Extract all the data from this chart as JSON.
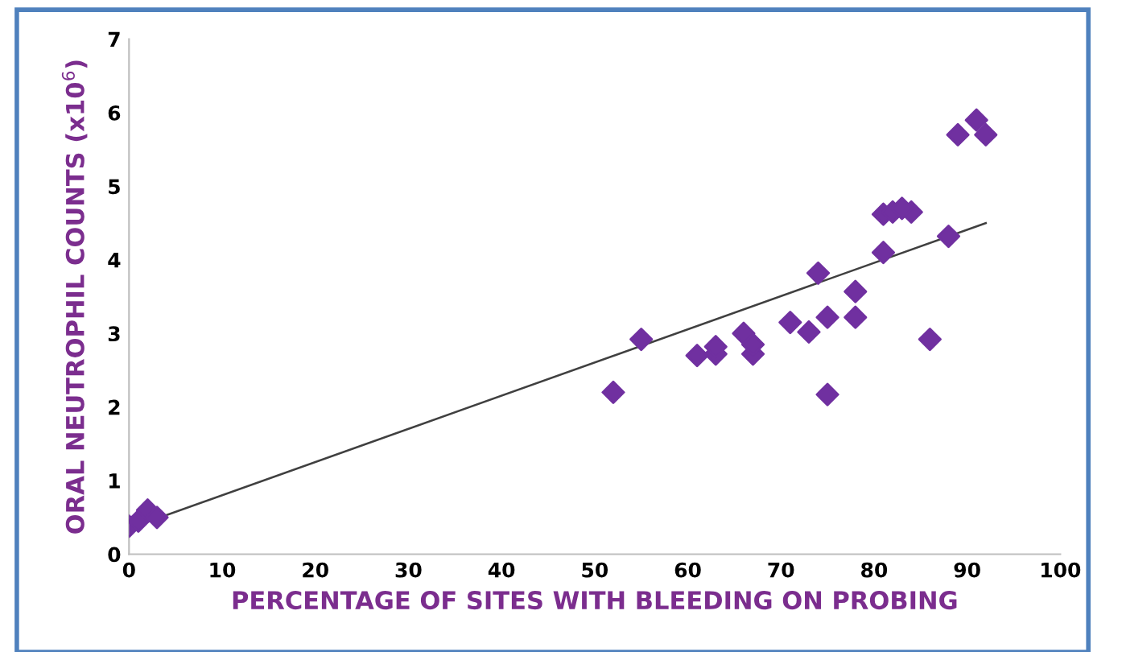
{
  "chart_data": {
    "type": "scatter",
    "xlabel": "PERCENTAGE OF SITES WITH BLEEDING ON PROBING",
    "ylabel": "ORAL NEUTROPHIL COUNTS (x10$^{6}$)",
    "xlim": [
      0,
      100
    ],
    "ylim": [
      0,
      7
    ],
    "xticks": [
      0,
      10,
      20,
      30,
      40,
      50,
      60,
      70,
      80,
      90,
      100
    ],
    "yticks": [
      0,
      1,
      2,
      3,
      4,
      5,
      6,
      7
    ],
    "grid": false,
    "legend": false,
    "series": [
      {
        "marker": "diamond",
        "color": "#7030a0",
        "x": [
          0,
          1,
          2,
          3,
          52,
          55,
          61,
          63,
          63,
          66,
          67,
          67,
          71,
          73,
          74,
          75,
          75,
          78,
          78,
          81,
          81,
          82,
          84,
          83,
          86,
          88,
          89,
          91,
          92
        ],
        "values": [
          0.38,
          0.45,
          0.6,
          0.5,
          2.2,
          2.92,
          2.7,
          2.72,
          2.82,
          3.0,
          2.72,
          2.85,
          3.15,
          3.02,
          3.82,
          3.22,
          2.17,
          3.22,
          3.57,
          4.1,
          4.62,
          4.65,
          4.65,
          4.7,
          2.92,
          4.32,
          5.7,
          5.9,
          5.7
        ]
      },
      {
        "type": "line",
        "color": "#404040",
        "line_style": "solid",
        "x": [
          0,
          92
        ],
        "values": [
          0.35,
          4.5
        ]
      }
    ]
  }
}
